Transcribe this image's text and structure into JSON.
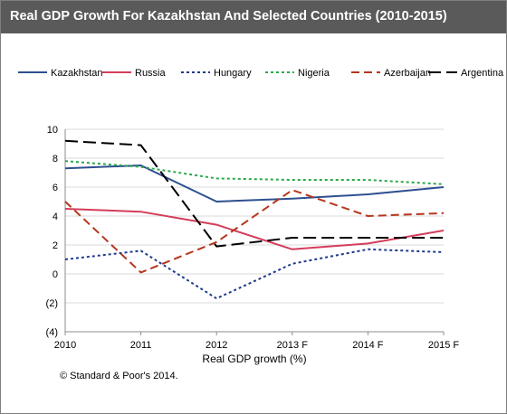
{
  "title": "Real GDP Growth For Kazakhstan And Selected Countries (2010-2015)",
  "copyright": "© Standard & Poor's 2014.",
  "chart_data": {
    "type": "line",
    "title": "Real GDP Growth For Kazakhstan And Selected Countries (2010-2015)",
    "xlabel": "Real GDP growth (%)",
    "ylabel": "",
    "categories": [
      "2010",
      "2011",
      "2012",
      "2013 F",
      "2014 F",
      "2015 F"
    ],
    "ylim": [
      -4,
      10
    ],
    "yticks": [
      -4,
      -2,
      0,
      2,
      4,
      6,
      8,
      10
    ],
    "ytick_labels": [
      "(4)",
      "(2)",
      "0",
      "2",
      "4",
      "6",
      "8",
      "10"
    ],
    "grid": true,
    "legend_position": "top",
    "series": [
      {
        "name": "Kazakhstan",
        "color": "#2e4f8f",
        "dash": "solid",
        "values": [
          7.3,
          7.5,
          5.0,
          5.2,
          5.5,
          6.0
        ]
      },
      {
        "name": "Russia",
        "color": "#d43d5b",
        "dash": "solid",
        "values": [
          4.5,
          4.3,
          3.4,
          1.7,
          2.1,
          3.0
        ]
      },
      {
        "name": "Hungary",
        "color": "#1f3b8c",
        "dash": "dot",
        "values": [
          1.0,
          1.6,
          -1.7,
          0.7,
          1.7,
          1.5
        ]
      },
      {
        "name": "Nigeria",
        "color": "#2aa84a",
        "dash": "dot",
        "values": [
          7.8,
          7.4,
          6.6,
          6.5,
          6.5,
          6.2
        ]
      },
      {
        "name": "Azerbaijan",
        "color": "#b5361c",
        "dash": "dash",
        "values": [
          5.0,
          0.1,
          2.2,
          5.8,
          4.0,
          4.2
        ]
      },
      {
        "name": "Argentina",
        "color": "#000000",
        "dash": "longdash",
        "values": [
          9.2,
          8.9,
          1.9,
          2.5,
          2.5,
          2.5
        ]
      }
    ]
  }
}
